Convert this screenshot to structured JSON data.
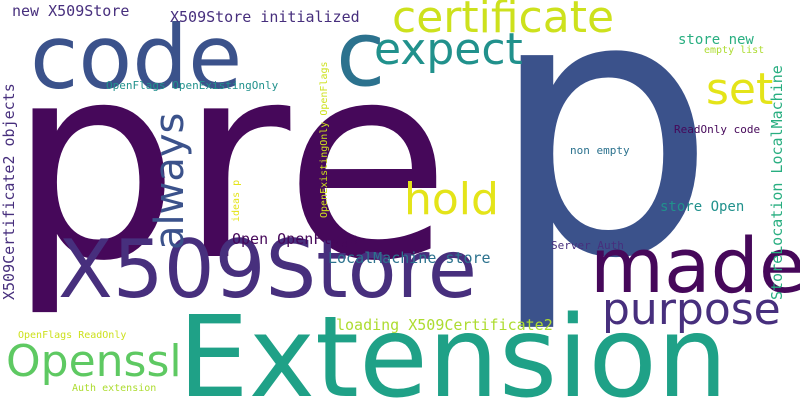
{
  "word_cloud": {
    "palette": {
      "dark_purple": "#46085a",
      "purple": "#472f7d",
      "blue": "#3b528b",
      "teal": "#2c728e",
      "green_teal": "#21918c",
      "green": "#28ae80",
      "light_green": "#5ec962",
      "lime": "#addc30",
      "yellow": "#e4e419"
    },
    "words": [
      {
        "text": "pre"
      },
      {
        "text": "p"
      },
      {
        "text": "Extension"
      },
      {
        "text": "X509Store"
      },
      {
        "text": "code"
      },
      {
        "text": "made"
      },
      {
        "text": "certificate"
      },
      {
        "text": "c"
      },
      {
        "text": "expect"
      },
      {
        "text": "always"
      },
      {
        "text": "purpose"
      },
      {
        "text": "Openssl"
      },
      {
        "text": "hold"
      },
      {
        "text": "set"
      },
      {
        "text": "new X509Store"
      },
      {
        "text": "X509Store initialized"
      },
      {
        "text": "X509Certificate2 objects"
      },
      {
        "text": "StoreLocation LocalMachine"
      },
      {
        "text": "Open OpenFlags"
      },
      {
        "text": "LocalMachine store"
      },
      {
        "text": "loading X509Certificate2"
      },
      {
        "text": "store Open"
      },
      {
        "text": "store new"
      },
      {
        "text": "empty list"
      },
      {
        "text": "OpenFlags OpenExistingOnly"
      },
      {
        "text": "OpenExistingOnly OpenFlags"
      },
      {
        "text": "ReadOnly code"
      },
      {
        "text": "non empty"
      },
      {
        "text": "ideas p"
      },
      {
        "text": "Server Auth"
      },
      {
        "text": "OpenFlags ReadOnly"
      },
      {
        "text": "Auth extension"
      }
    ]
  }
}
